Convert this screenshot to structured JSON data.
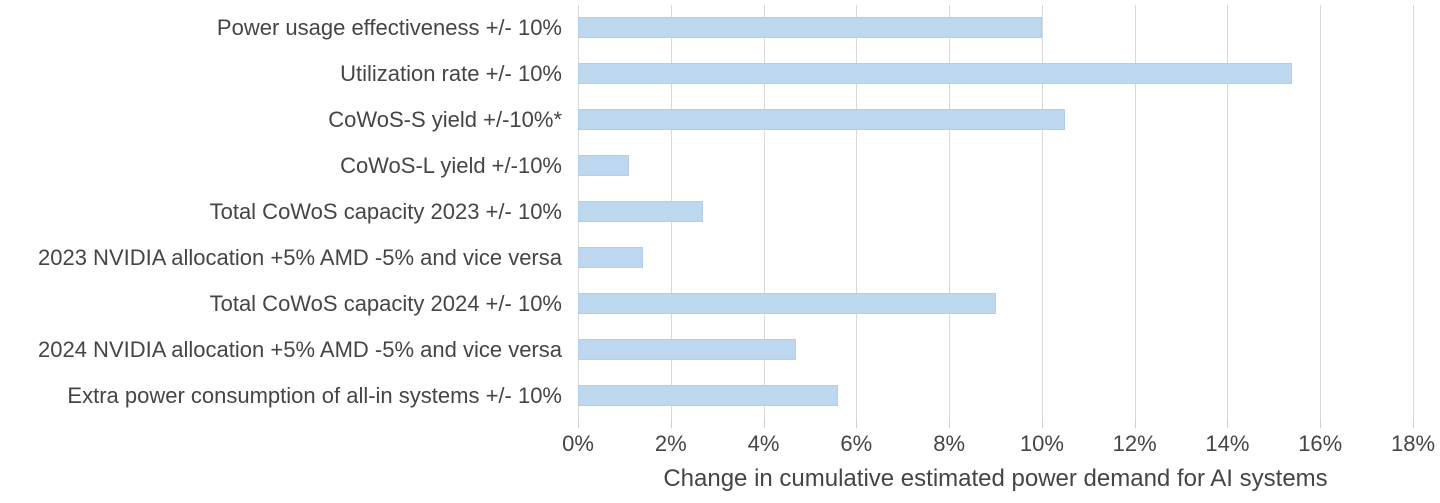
{
  "chart_data": {
    "type": "bar",
    "orientation": "horizontal",
    "title": "",
    "xlabel": "Change in cumulative estimated power demand for AI systems",
    "ylabel": "",
    "categories": [
      "Power usage effectiveness +/- 10%",
      "Utilization rate +/- 10%",
      "CoWoS-S yield +/-10%*",
      "CoWoS-L yield +/-10%",
      "Total CoWoS capacity 2023 +/- 10%",
      "2023 NVIDIA allocation +5% AMD -5% and vice versa",
      "Total CoWoS capacity 2024 +/- 10%",
      "2024 NVIDIA allocation +5% AMD -5% and vice versa",
      "Extra power consumption of all-in systems +/- 10%"
    ],
    "values": [
      10.0,
      15.4,
      10.5,
      1.1,
      2.7,
      1.4,
      9.0,
      4.7,
      5.6
    ],
    "value_unit": "%",
    "xlim": [
      0,
      18
    ],
    "x_tick_values": [
      0,
      2,
      4,
      6,
      8,
      10,
      12,
      14,
      16,
      18
    ],
    "x_tick_labels": [
      "0%",
      "2%",
      "4%",
      "6%",
      "8%",
      "10%",
      "12%",
      "14%",
      "16%",
      "18%"
    ],
    "grid": "vertical-only",
    "legend": "none",
    "colors": {
      "bar_fill": "#BDD7EE",
      "bar_border": "#B0CFEA",
      "gridline": "#D9D9D9",
      "text": "#454545",
      "background": "#FFFFFF"
    }
  }
}
